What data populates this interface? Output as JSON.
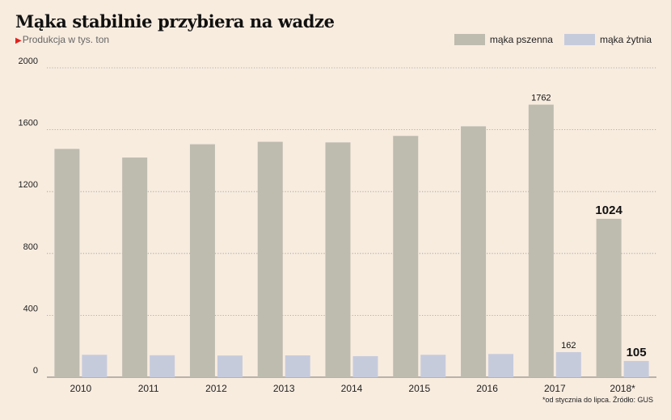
{
  "title": "Mąka stabilnie przybiera na wadze",
  "subtitle": "Produkcja w tys. ton",
  "footnote": "*od stycznia do lipca. Źródło: GUS",
  "colors": {
    "pszenna": "#bebbaf",
    "zytnia": "#c6cbdc",
    "grid": "#999999",
    "background": "#f8ecdf"
  },
  "chart_data": {
    "type": "bar",
    "categories": [
      "2010",
      "2011",
      "2012",
      "2013",
      "2014",
      "2015",
      "2016",
      "2017",
      "2018*"
    ],
    "series": [
      {
        "name": "mąka pszenna",
        "values": [
          1476,
          1420,
          1506,
          1522,
          1518,
          1560,
          1622,
          1762,
          1024
        ]
      },
      {
        "name": "mąka żytnia",
        "values": [
          145,
          142,
          140,
          141,
          136,
          145,
          150,
          162,
          105
        ]
      }
    ],
    "data_labels": [
      {
        "series": 0,
        "index": 7,
        "text": "1762",
        "bold": false
      },
      {
        "series": 0,
        "index": 8,
        "text": "1024",
        "bold": true
      },
      {
        "series": 1,
        "index": 7,
        "text": "162",
        "bold": false
      },
      {
        "series": 1,
        "index": 8,
        "text": "105",
        "bold": true
      }
    ],
    "yticks": [
      0,
      400,
      800,
      1200,
      1600,
      2000
    ],
    "ylim": [
      0,
      2000
    ],
    "grid": true,
    "legend_position": "top-right"
  }
}
